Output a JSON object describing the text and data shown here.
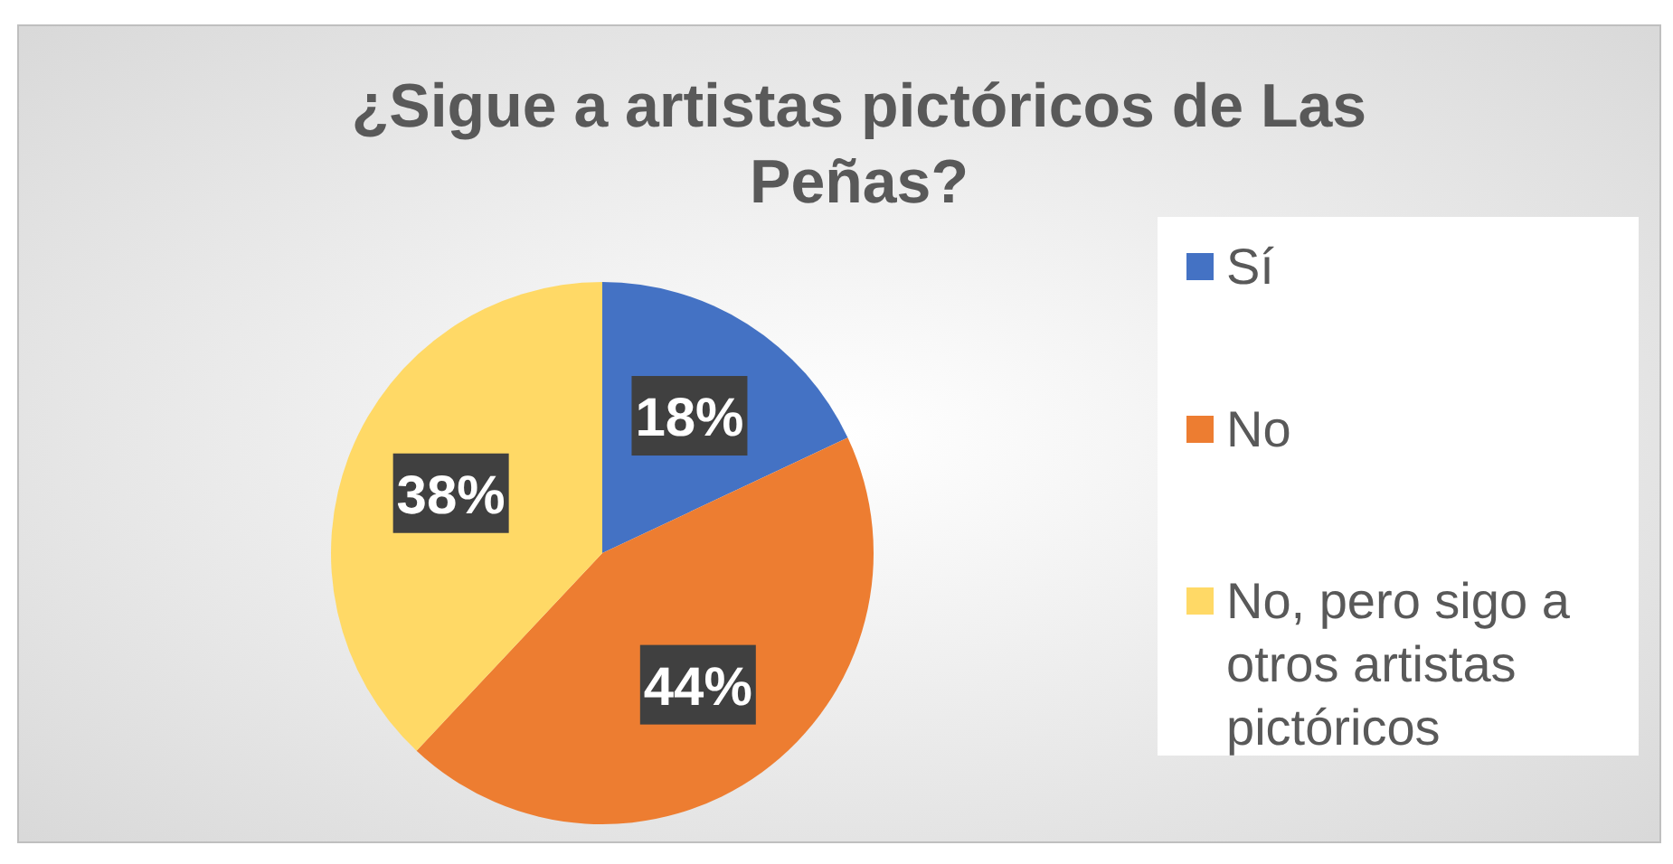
{
  "chart_data": {
    "type": "pie",
    "title": "¿Sigue a artistas pictóricos de Las Peñas?",
    "categories": [
      "Sí",
      "No",
      "No, pero sigo a otros artistas pictóricos"
    ],
    "values": [
      18,
      44,
      38
    ],
    "colors": [
      "#4472c4",
      "#ed7d31",
      "#ffd966"
    ],
    "value_labels": [
      "18%",
      "44%",
      "38%"
    ],
    "legend": "right"
  }
}
